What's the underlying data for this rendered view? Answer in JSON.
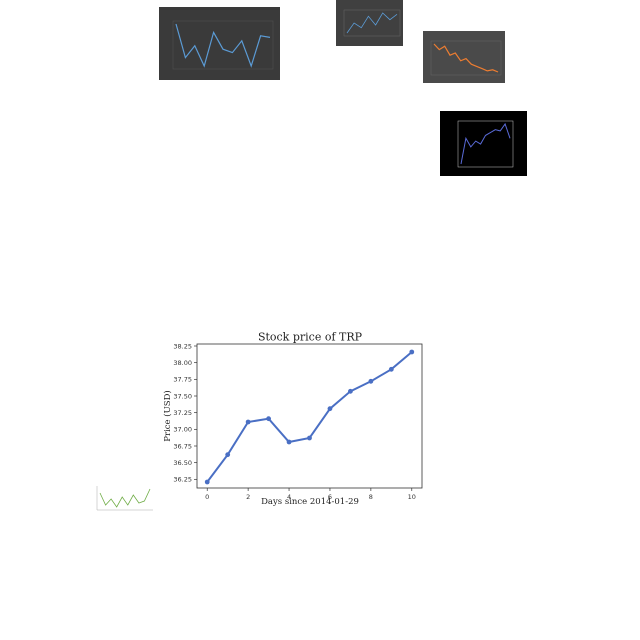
{
  "thumbnails": [
    {
      "title": "",
      "series": [
        55,
        35,
        42,
        30,
        50,
        40,
        38,
        45,
        30,
        48,
        47
      ],
      "color": "#5b9bd5"
    },
    {
      "title": "",
      "series": [
        30,
        45,
        38,
        55,
        42,
        60,
        50,
        58
      ],
      "color": "#5b9bd5"
    },
    {
      "title": "",
      "series": [
        60,
        55,
        58,
        50,
        52,
        45,
        47,
        42,
        40,
        38,
        36,
        37,
        35
      ],
      "color": "#ed7d31"
    },
    {
      "title": "",
      "series": [
        10,
        55,
        40,
        50,
        45,
        60,
        65,
        70,
        68,
        80,
        55
      ],
      "color": "#5a6bd8"
    },
    {
      "title": "",
      "series": [
        50,
        20,
        35,
        15,
        40,
        20,
        45,
        25,
        30,
        60
      ],
      "color": "#70ad47"
    }
  ],
  "chart_data": {
    "type": "line",
    "title": "Stock price of TRP",
    "xlabel": "Days since 2014-01-29",
    "ylabel": "Price (USD)",
    "x": [
      0,
      1,
      2,
      3,
      4,
      5,
      6,
      7,
      8,
      9,
      10
    ],
    "series": [
      {
        "values": [
          36.21,
          36.62,
          37.11,
          37.16,
          36.81,
          36.87,
          37.31,
          37.57,
          37.72,
          37.9,
          38.16
        ]
      }
    ],
    "xlim": [
      -0.5,
      10.5
    ],
    "ylim": [
      36.12,
      38.28
    ],
    "xticks": [
      0,
      2,
      4,
      6,
      8,
      10
    ],
    "yticks": [
      36.25,
      36.5,
      36.75,
      37.0,
      37.25,
      37.5,
      37.75,
      38.0,
      38.25
    ],
    "ytick_labels": [
      "36.25",
      "36.50",
      "36.75",
      "37.00",
      "37.25",
      "37.50",
      "37.75",
      "38.00",
      "38.25"
    ],
    "grid": false,
    "line_color": "#4a6fc4"
  }
}
